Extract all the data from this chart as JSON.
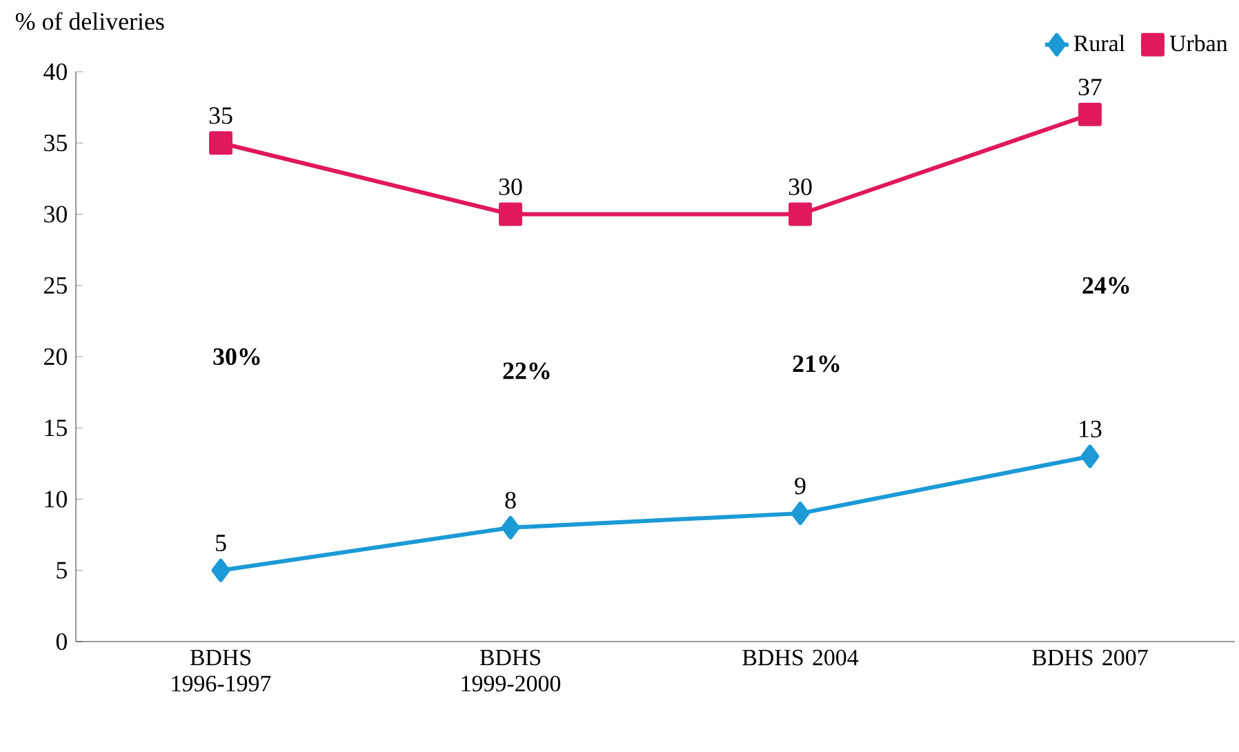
{
  "chart_data": {
    "type": "line",
    "ylabel": "% of deliveries",
    "categories": [
      "BDHS 1996-1997",
      "BDHS 1999-2000",
      "BDHS 2004",
      "BDHS 2007"
    ],
    "series": [
      {
        "name": "Rural",
        "color": "#1b9ad6",
        "marker": "diamond",
        "values": [
          5,
          8,
          9,
          13
        ]
      },
      {
        "name": "Urban",
        "color": "#e0185c",
        "marker": "square",
        "values": [
          35,
          30,
          30,
          37
        ]
      }
    ],
    "ylim": [
      0,
      40
    ],
    "yticks": [
      0,
      5,
      10,
      15,
      20,
      25,
      30,
      35,
      40
    ],
    "data_labels": true,
    "grid": false,
    "legend": "top right",
    "line_style": "solid",
    "annotations": [
      "30%",
      "22%",
      "21%",
      "24%"
    ]
  }
}
